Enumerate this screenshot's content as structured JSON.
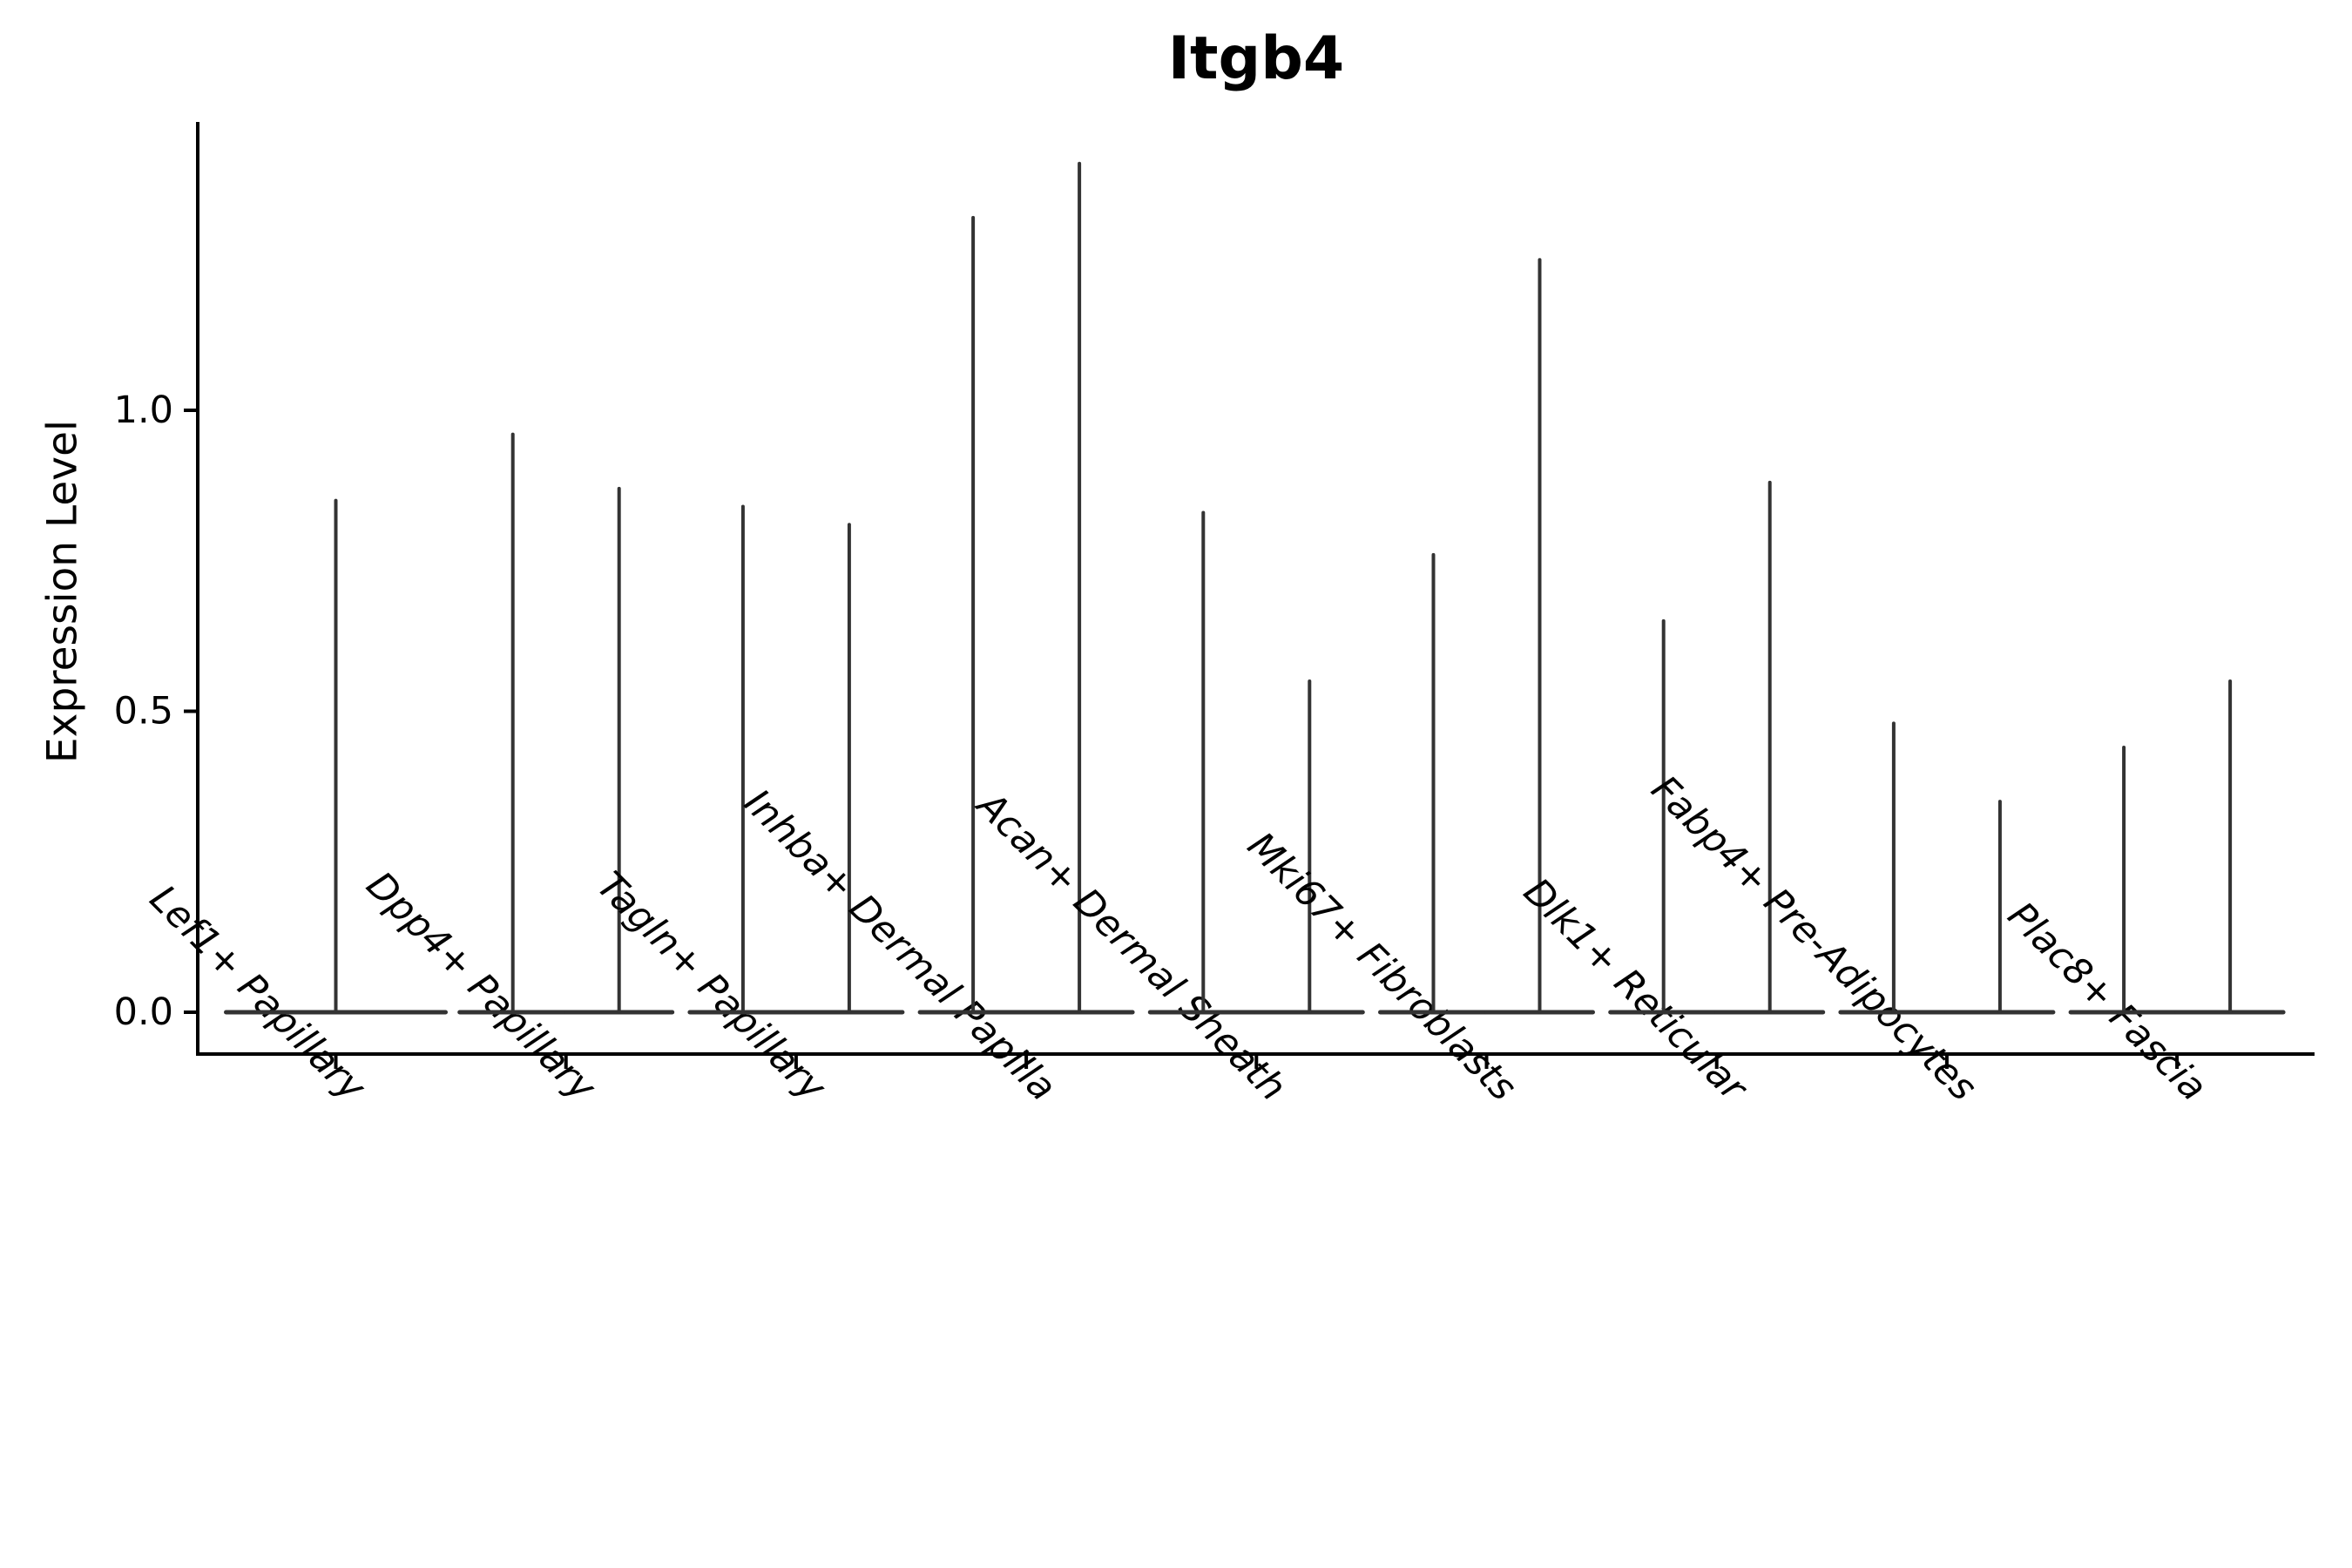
{
  "chart_data": {
    "type": "violin",
    "title": "Itgb4",
    "xlabel": "",
    "ylabel": "Expression Level",
    "ylim": [
      -0.07,
      1.48
    ],
    "ytick_values": [
      0.0,
      0.5,
      1.0
    ],
    "ytick_labels": [
      "0.0",
      "0.5",
      "1.0"
    ],
    "grid": false,
    "legend": false,
    "description": "Violin plot of Itgb4 expression per fibroblast subtype; nearly all cells are at 0 (flat violin body on the baseline) with a thin density spike rising to the maximum expression of each group. Every category except the first contains two side-by-side violins.",
    "categories": [
      "Lef1+ Papillary",
      "Dpp4+ Papillary",
      "Tagln+ Papillary",
      "Inhba+ Dermal Papilla",
      "Acan+ Dermal Sheath",
      "Mki67+ Fibroblasts",
      "Dlk1+ Reticular",
      "Fabp4+ Pre-Adipocytes",
      "Plac8+ Fascia"
    ],
    "violins": [
      {
        "category": "Lef1+ Papillary",
        "baseline_value": 0,
        "group_max_values": [
          0.85
        ]
      },
      {
        "category": "Dpp4+ Papillary",
        "baseline_value": 0,
        "group_max_values": [
          0.96,
          0.87
        ]
      },
      {
        "category": "Tagln+ Papillary",
        "baseline_value": 0,
        "group_max_values": [
          0.84,
          0.81
        ]
      },
      {
        "category": "Inhba+ Dermal Papilla",
        "baseline_value": 0,
        "group_max_values": [
          1.32,
          1.41
        ]
      },
      {
        "category": "Acan+ Dermal Sheath",
        "baseline_value": 0,
        "group_max_values": [
          0.83,
          0.55
        ]
      },
      {
        "category": "Mki67+ Fibroblasts",
        "baseline_value": 0,
        "group_max_values": [
          0.76,
          1.25
        ]
      },
      {
        "category": "Dlk1+ Reticular",
        "baseline_value": 0,
        "group_max_values": [
          0.65,
          0.88
        ]
      },
      {
        "category": "Fabp4+ Pre-Adipocytes",
        "baseline_value": 0,
        "group_max_values": [
          0.48,
          0.35
        ]
      },
      {
        "category": "Plac8+ Fascia",
        "baseline_value": 0,
        "group_max_values": [
          0.44,
          0.55
        ]
      }
    ],
    "colors": {
      "violin_stroke": "#333333",
      "axis": "#000000",
      "text": "#000000",
      "background": "#ffffff"
    }
  }
}
